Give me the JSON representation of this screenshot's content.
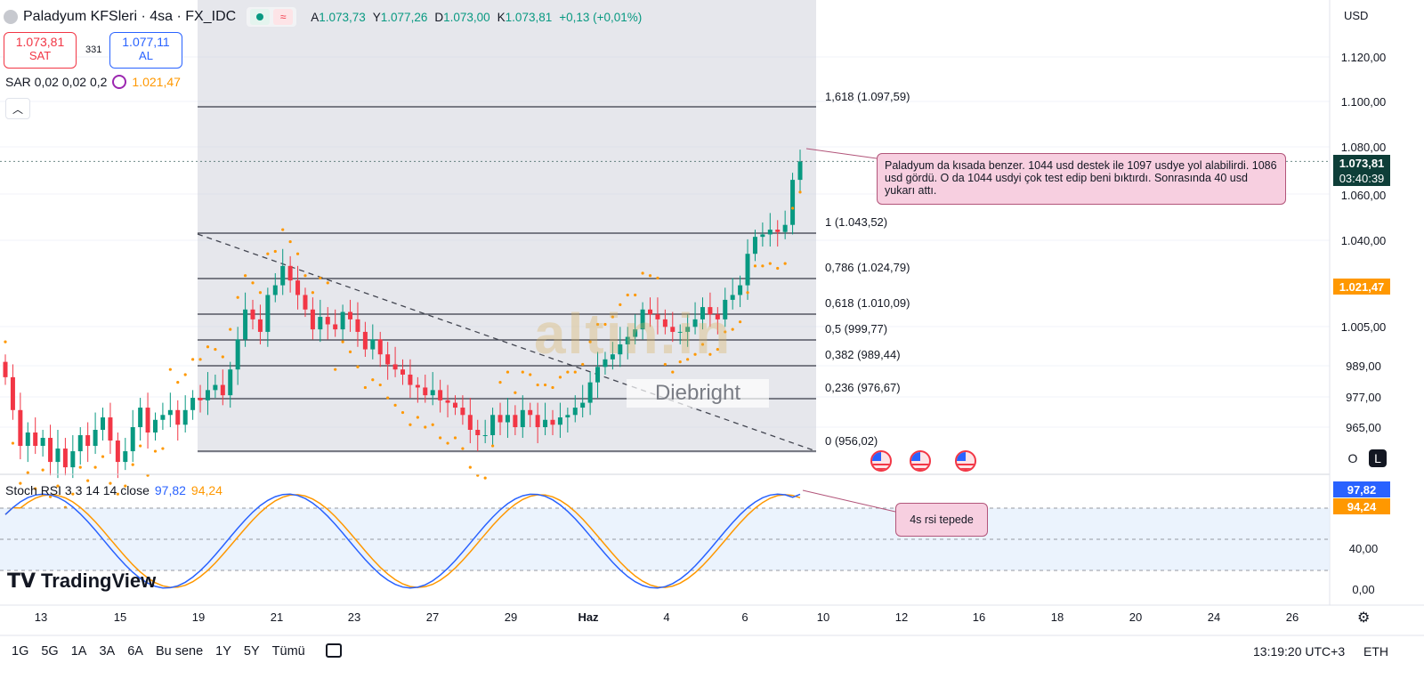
{
  "header": {
    "title": "Paladyum KFSleri · 4sa · FX_IDC",
    "ohlc": [
      {
        "k": "A",
        "v": "1.073,73"
      },
      {
        "k": "Y",
        "v": "1.077,26"
      },
      {
        "k": "D",
        "v": "1.073,00"
      },
      {
        "k": "K",
        "v": "1.073,81"
      }
    ],
    "change": "+0,13 (+0,01%)"
  },
  "trade": {
    "sell_price": "1.073,81",
    "sell_label": "SAT",
    "spread": "331",
    "buy_price": "1.077,11",
    "buy_label": "AL"
  },
  "sar": {
    "label": "SAR 0,02 0,02 0,2",
    "value": "1.021,47"
  },
  "currency": "USD",
  "price_axis": [
    "1.120,00",
    "1.100,00",
    "1.080,00",
    "1.060,00",
    "1.040,00",
    "1.005,00",
    "989,00",
    "977,00",
    "965,00"
  ],
  "tags": {
    "last_price": "1.073,81",
    "countdown": "03:40:39",
    "sar_tag": "1.021,47",
    "rsi_k": "97,82",
    "rsi_d": "94,24"
  },
  "fib_levels": [
    {
      "label": "1,618 (1.097,59)"
    },
    {
      "label": "1 (1.043,52)"
    },
    {
      "label": "0,786 (1.024,79)"
    },
    {
      "label": "0,618 (1.010,09)"
    },
    {
      "label": "0,5 (999,77)"
    },
    {
      "label": "0,382 (989,44)"
    },
    {
      "label": "0,236 (976,67)"
    },
    {
      "label": "0 (956,02)"
    }
  ],
  "annotation_main": "Paladyum da kısada benzer. 1044 usd destek ile 1097 usdye yol alabilirdi. 1086 usd gördü. O da 1044 usdyi çok test edip beni bıktırdı. Sonrasında 40 usd yukarı attı.",
  "annotation_rsi": "4s rsi tepede",
  "rsi": {
    "label": "Stoch RSI 3 3 14 14 close",
    "k_value": "97,82",
    "d_value": "94,24",
    "axis": [
      "40,00",
      "0,00"
    ]
  },
  "x_axis": [
    "13",
    "15",
    "19",
    "21",
    "23",
    "27",
    "29",
    "Haz",
    "4",
    "6",
    "10",
    "12",
    "16",
    "18",
    "20",
    "24",
    "26"
  ],
  "timeframes": [
    "1G",
    "5G",
    "1A",
    "3A",
    "6A",
    "Bu sene",
    "1Y",
    "5Y",
    "Tümü"
  ],
  "clock": "13:19:20 UTC+3",
  "session": "ETH",
  "logo_text": "TradingView",
  "watermark_main": "altin.in",
  "watermark_sub": "Diebright",
  "axis_toggles": {
    "o": "O",
    "l": "L"
  },
  "colors": {
    "up": "#089981",
    "down": "#f23645",
    "sar": "#ff9800",
    "rsi_k": "#2962ff",
    "rsi_d": "#ff9800",
    "highlight": "#d1d4dc"
  },
  "chart_data": {
    "type": "candlestick",
    "title": "Paladyum KFSleri · 4sa · FX_IDC",
    "y_scale": "non-linear (axis labels 965 … 1.120)",
    "last_price": 1073.81,
    "ohlc_last": {
      "open": 1073.73,
      "high": 1077.26,
      "low": 1073.0,
      "close": 1073.81
    },
    "fibonacci": [
      {
        "ratio": 1.618,
        "price": 1097.59
      },
      {
        "ratio": 1,
        "price": 1043.52
      },
      {
        "ratio": 0.786,
        "price": 1024.79
      },
      {
        "ratio": 0.618,
        "price": 1010.09
      },
      {
        "ratio": 0.5,
        "price": 999.77
      },
      {
        "ratio": 0.382,
        "price": 989.44
      },
      {
        "ratio": 0.236,
        "price": 976.67
      },
      {
        "ratio": 0,
        "price": 956.02
      }
    ],
    "closes": [
      985,
      972,
      958,
      963,
      958,
      961,
      952,
      957,
      950,
      956,
      962,
      958,
      964,
      969,
      960,
      952,
      956,
      965,
      973,
      963,
      968,
      970,
      972,
      966,
      972,
      977,
      976,
      980,
      982,
      978,
      988,
      1000,
      1012,
      1008,
      1003,
      1018,
      1022,
      1030,
      1024,
      1018,
      1012,
      1004,
      1009,
      1006,
      1004,
      1011,
      1008,
      1003,
      996,
      1000,
      994,
      990,
      988,
      986,
      982,
      981,
      978,
      980,
      976,
      975,
      973,
      970,
      964,
      962,
      962,
      970,
      967,
      970,
      965,
      972,
      970,
      965,
      968,
      966,
      969,
      970,
      973,
      975,
      983,
      989,
      992,
      994,
      998,
      1001,
      1004,
      1012,
      1010,
      1008,
      1005,
      1003,
      1003,
      1005,
      1008,
      1013,
      1010,
      1008,
      1016,
      1018,
      1022,
      1035,
      1042,
      1043,
      1045,
      1044,
      1047,
      1066,
      1073.81
    ],
    "sar_last": 1021.47,
    "stoch_rsi": {
      "k": 97.82,
      "d": 94.24,
      "axis_ticks": [
        40,
        0
      ]
    }
  }
}
